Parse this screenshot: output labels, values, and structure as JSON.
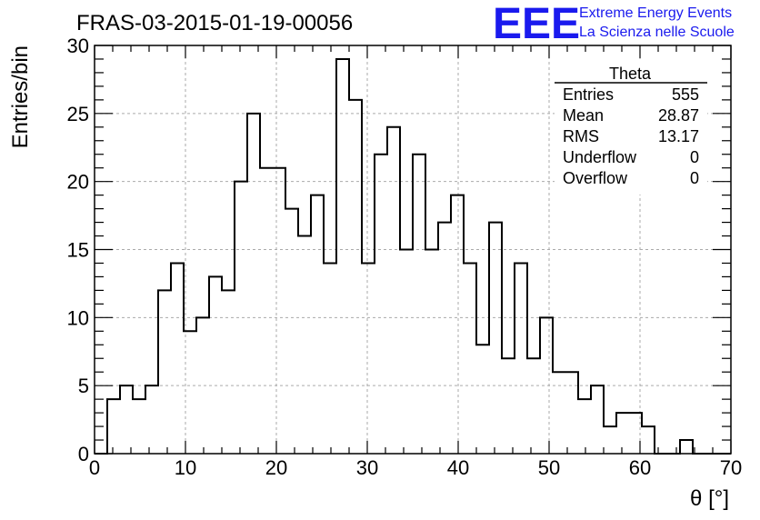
{
  "chart_data": {
    "type": "histogram",
    "title": "FRAS-03-2015-01-19-00056",
    "xlabel": "θ [°]",
    "ylabel": "Entries/bin",
    "xlim": [
      0,
      70
    ],
    "ylim": [
      0,
      30
    ],
    "x_ticks": [
      0,
      10,
      20,
      30,
      40,
      50,
      60,
      70
    ],
    "y_ticks": [
      0,
      5,
      10,
      15,
      20,
      25,
      30
    ],
    "grid": true,
    "bin_width": 1.4,
    "bin_start": 0,
    "values": [
      0,
      4,
      5,
      4,
      5,
      12,
      14,
      9,
      10,
      13,
      12,
      20,
      25,
      21,
      21,
      18,
      16,
      19,
      14,
      29,
      26,
      14,
      22,
      24,
      15,
      22,
      15,
      17,
      19,
      14,
      8,
      17,
      7,
      14,
      7,
      10,
      6,
      6,
      4,
      5,
      2,
      3,
      3,
      2,
      0,
      0,
      1,
      0,
      0,
      0
    ],
    "stats": {
      "name": "Theta",
      "rows": [
        {
          "label": "Entries",
          "value": "555"
        },
        {
          "label": "Mean",
          "value": "28.87"
        },
        {
          "label": "RMS",
          "value": "13.17"
        },
        {
          "label": "Underflow",
          "value": "0"
        },
        {
          "label": "Overflow",
          "value": "0"
        }
      ]
    },
    "line_color": "#000000"
  },
  "logo": {
    "mark": "EEE",
    "line1": "Extreme Energy Events",
    "line2": "La Scienza nelle Scuole",
    "color": "#1a1aee"
  }
}
